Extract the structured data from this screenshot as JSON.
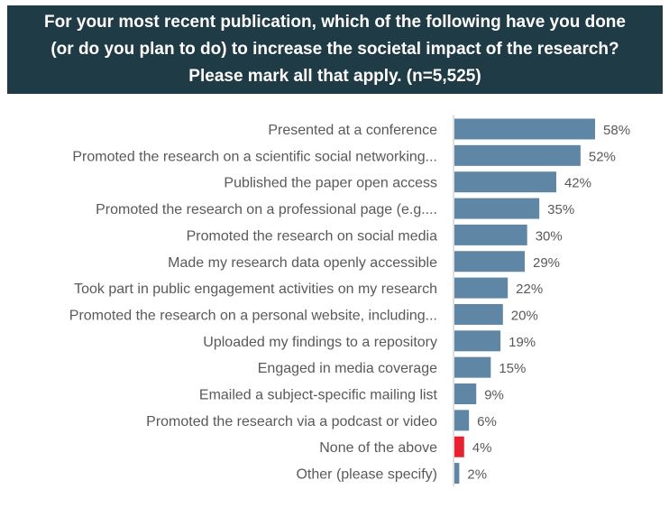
{
  "chart_data": {
    "type": "bar",
    "orientation": "horizontal",
    "title": "For your most recent publication, which of the following have you done\n(or do you plan to do) to increase the societal impact of the research?\nPlease mark all that apply.        (n=5,525)",
    "categories": [
      "Presented at a conference",
      "Promoted the research on a scientific social networking...",
      "Published the paper open access",
      "Promoted the research on a professional page (e.g....",
      "Promoted the research on social media",
      "Made my research data openly accessible",
      "Took part in public engagement activities on my research",
      "Promoted the research on a personal website, including...",
      "Uploaded my findings to a repository",
      "Engaged in media coverage",
      "Emailed a subject-specific mailing list",
      "Promoted the research via a podcast or video",
      "None of the above",
      "Other (please specify)"
    ],
    "values": [
      58,
      52,
      42,
      35,
      30,
      29,
      22,
      20,
      19,
      15,
      9,
      6,
      4,
      2
    ],
    "value_labels": [
      "58%",
      "52%",
      "42%",
      "35%",
      "30%",
      "29%",
      "22%",
      "20%",
      "19%",
      "15%",
      "9%",
      "6%",
      "4%",
      "2%"
    ],
    "unit": "%",
    "xlim": [
      0,
      100
    ],
    "grid": false,
    "legend": "none",
    "colors": {
      "bar": "#5f87a5",
      "highlight": "#e8202f",
      "highlight_index": 12,
      "axis": "#bfbfbf",
      "title_bg": "#1f3b45",
      "title_text": "#ffffff",
      "label_text": "#595959"
    }
  }
}
